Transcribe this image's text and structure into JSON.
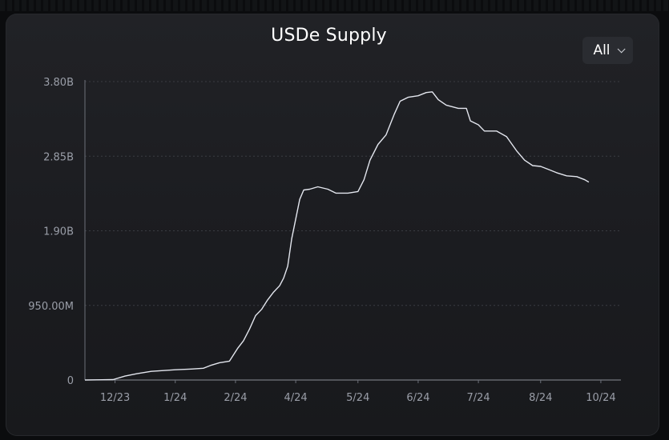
{
  "chart_data": {
    "type": "line",
    "title": "USDe Supply",
    "range_selector": {
      "selected": "All"
    },
    "y_ticks": [
      {
        "value": 0,
        "label": "0"
      },
      {
        "value": 950000000,
        "label": "950.00M"
      },
      {
        "value": 1900000000,
        "label": "1.90B"
      },
      {
        "value": 2850000000,
        "label": "2.85B"
      },
      {
        "value": 3800000000,
        "label": "3.80B"
      }
    ],
    "x_ticks": [
      {
        "label": "12/23",
        "x": "2023-12-08"
      },
      {
        "label": "1/24",
        "x": "2024-01-07"
      },
      {
        "label": "2/24",
        "x": "2024-02-06"
      },
      {
        "label": "4/24",
        "x": "2024-03-07"
      },
      {
        "label": "5/24",
        "x": "2024-04-07"
      },
      {
        "label": "6/24",
        "x": "2024-05-07"
      },
      {
        "label": "7/24",
        "x": "2024-06-06"
      },
      {
        "label": "8/24",
        "x": "2024-07-07"
      },
      {
        "label": "10/24",
        "x": "2024-08-06"
      }
    ],
    "xlim": [
      "2023-11-23",
      "2024-08-16"
    ],
    "ylim": [
      0,
      3800000000
    ],
    "grid": "horizontal dashed",
    "line_color": "#e3e6ee",
    "series": [
      {
        "name": "",
        "points": [
          [
            "2023-11-23",
            0
          ],
          [
            "2023-12-07",
            5000000
          ],
          [
            "2023-12-13",
            50000000
          ],
          [
            "2023-12-19",
            80000000
          ],
          [
            "2023-12-26",
            110000000
          ],
          [
            "2024-01-01",
            120000000
          ],
          [
            "2024-01-07",
            130000000
          ],
          [
            "2024-01-15",
            140000000
          ],
          [
            "2024-01-21",
            150000000
          ],
          [
            "2024-01-25",
            190000000
          ],
          [
            "2024-01-29",
            220000000
          ],
          [
            "2024-02-03",
            240000000
          ],
          [
            "2024-02-07",
            400000000
          ],
          [
            "2024-02-10",
            500000000
          ],
          [
            "2024-02-13",
            650000000
          ],
          [
            "2024-02-16",
            820000000
          ],
          [
            "2024-02-19",
            900000000
          ],
          [
            "2024-02-22",
            1020000000
          ],
          [
            "2024-02-25",
            1120000000
          ],
          [
            "2024-02-28",
            1200000000
          ],
          [
            "2024-03-01",
            1300000000
          ],
          [
            "2024-03-03",
            1450000000
          ],
          [
            "2024-03-05",
            1800000000
          ],
          [
            "2024-03-07",
            2050000000
          ],
          [
            "2024-03-09",
            2300000000
          ],
          [
            "2024-03-11",
            2420000000
          ],
          [
            "2024-03-14",
            2430000000
          ],
          [
            "2024-03-18",
            2460000000
          ],
          [
            "2024-03-23",
            2430000000
          ],
          [
            "2024-03-27",
            2380000000
          ],
          [
            "2024-04-02",
            2380000000
          ],
          [
            "2024-04-07",
            2400000000
          ],
          [
            "2024-04-10",
            2550000000
          ],
          [
            "2024-04-13",
            2800000000
          ],
          [
            "2024-04-17",
            3000000000
          ],
          [
            "2024-04-21",
            3120000000
          ],
          [
            "2024-04-25",
            3380000000
          ],
          [
            "2024-04-28",
            3550000000
          ],
          [
            "2024-05-02",
            3600000000
          ],
          [
            "2024-05-07",
            3620000000
          ],
          [
            "2024-05-11",
            3660000000
          ],
          [
            "2024-05-14",
            3670000000
          ],
          [
            "2024-05-17",
            3570000000
          ],
          [
            "2024-05-21",
            3500000000
          ],
          [
            "2024-05-27",
            3460000000
          ],
          [
            "2024-05-31",
            3460000000
          ],
          [
            "2024-06-02",
            3300000000
          ],
          [
            "2024-06-06",
            3250000000
          ],
          [
            "2024-06-09",
            3170000000
          ],
          [
            "2024-06-15",
            3170000000
          ],
          [
            "2024-06-20",
            3100000000
          ],
          [
            "2024-06-25",
            2920000000
          ],
          [
            "2024-06-29",
            2800000000
          ],
          [
            "2024-07-03",
            2730000000
          ],
          [
            "2024-07-07",
            2720000000
          ],
          [
            "2024-07-11",
            2680000000
          ],
          [
            "2024-07-15",
            2640000000
          ],
          [
            "2024-07-20",
            2600000000
          ],
          [
            "2024-07-25",
            2590000000
          ],
          [
            "2024-07-29",
            2550000000
          ],
          [
            "2024-07-31",
            2520000000
          ]
        ]
      }
    ]
  }
}
